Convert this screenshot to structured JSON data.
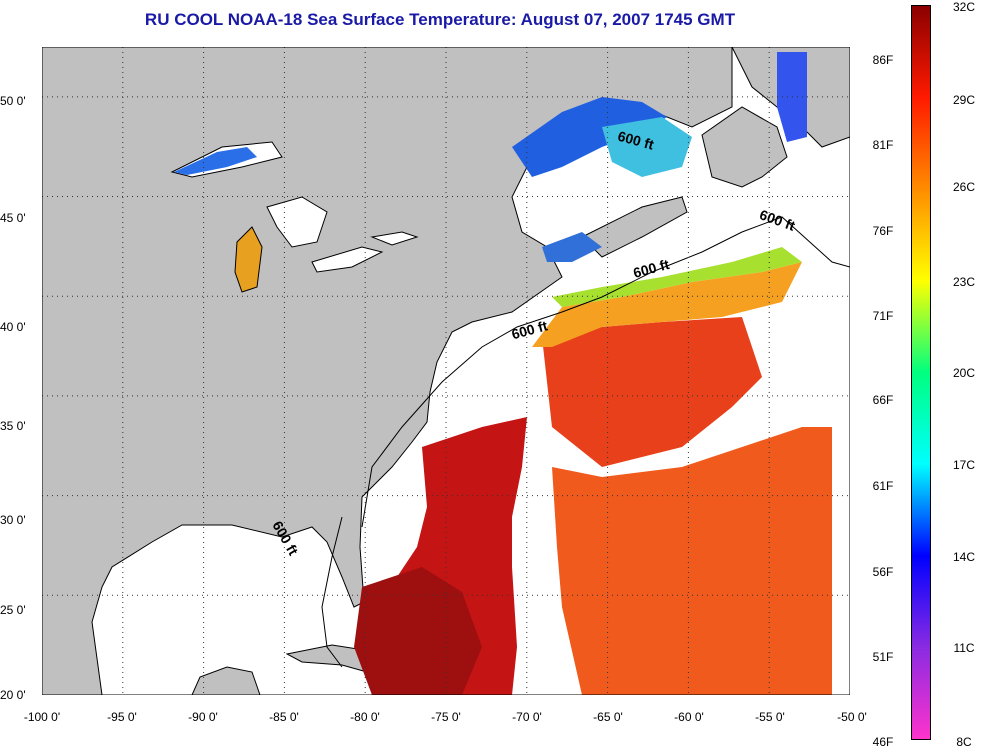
{
  "title": "RU COOL  NOAA-18  Sea Surface Temperature:  August 07, 2007 1745 GMT",
  "map": {
    "land_color": "#c0c0c0",
    "missing_color": "#ffffff",
    "coast_color": "#000000",
    "lon_range": [
      -100,
      -50
    ],
    "lat_range": [
      20,
      52.5
    ],
    "lat_ticks": [
      "20 0'",
      "25 0'",
      "30 0'",
      "35 0'",
      "40 0'",
      "45 0'",
      "50 0'"
    ],
    "lon_ticks": [
      "-100 0'",
      "-95 0'",
      "-90 0'",
      "-85 0'",
      "-80 0'",
      "-75 0'",
      "-70 0'",
      "-65 0'",
      "-60 0'",
      "-55 0'",
      "-50 0'"
    ],
    "isobath_labels": [
      "600 ft",
      "600 ft",
      "600 ft",
      "600 ft",
      "600 ft"
    ]
  },
  "colorbar": {
    "fahrenheit": [
      "86F",
      "81F",
      "76F",
      "71F",
      "66F",
      "61F",
      "56F",
      "51F",
      "46F"
    ],
    "celsius": [
      "32C",
      "29C",
      "26C",
      "23C",
      "20C",
      "17C",
      "14C",
      "11C",
      "8C"
    ],
    "colors": [
      "#8b0000",
      "#ff1a00",
      "#ff8c00",
      "#ffff00",
      "#00ff7f",
      "#00ffff",
      "#0000ff",
      "#8a2be2",
      "#ff33cc"
    ]
  }
}
